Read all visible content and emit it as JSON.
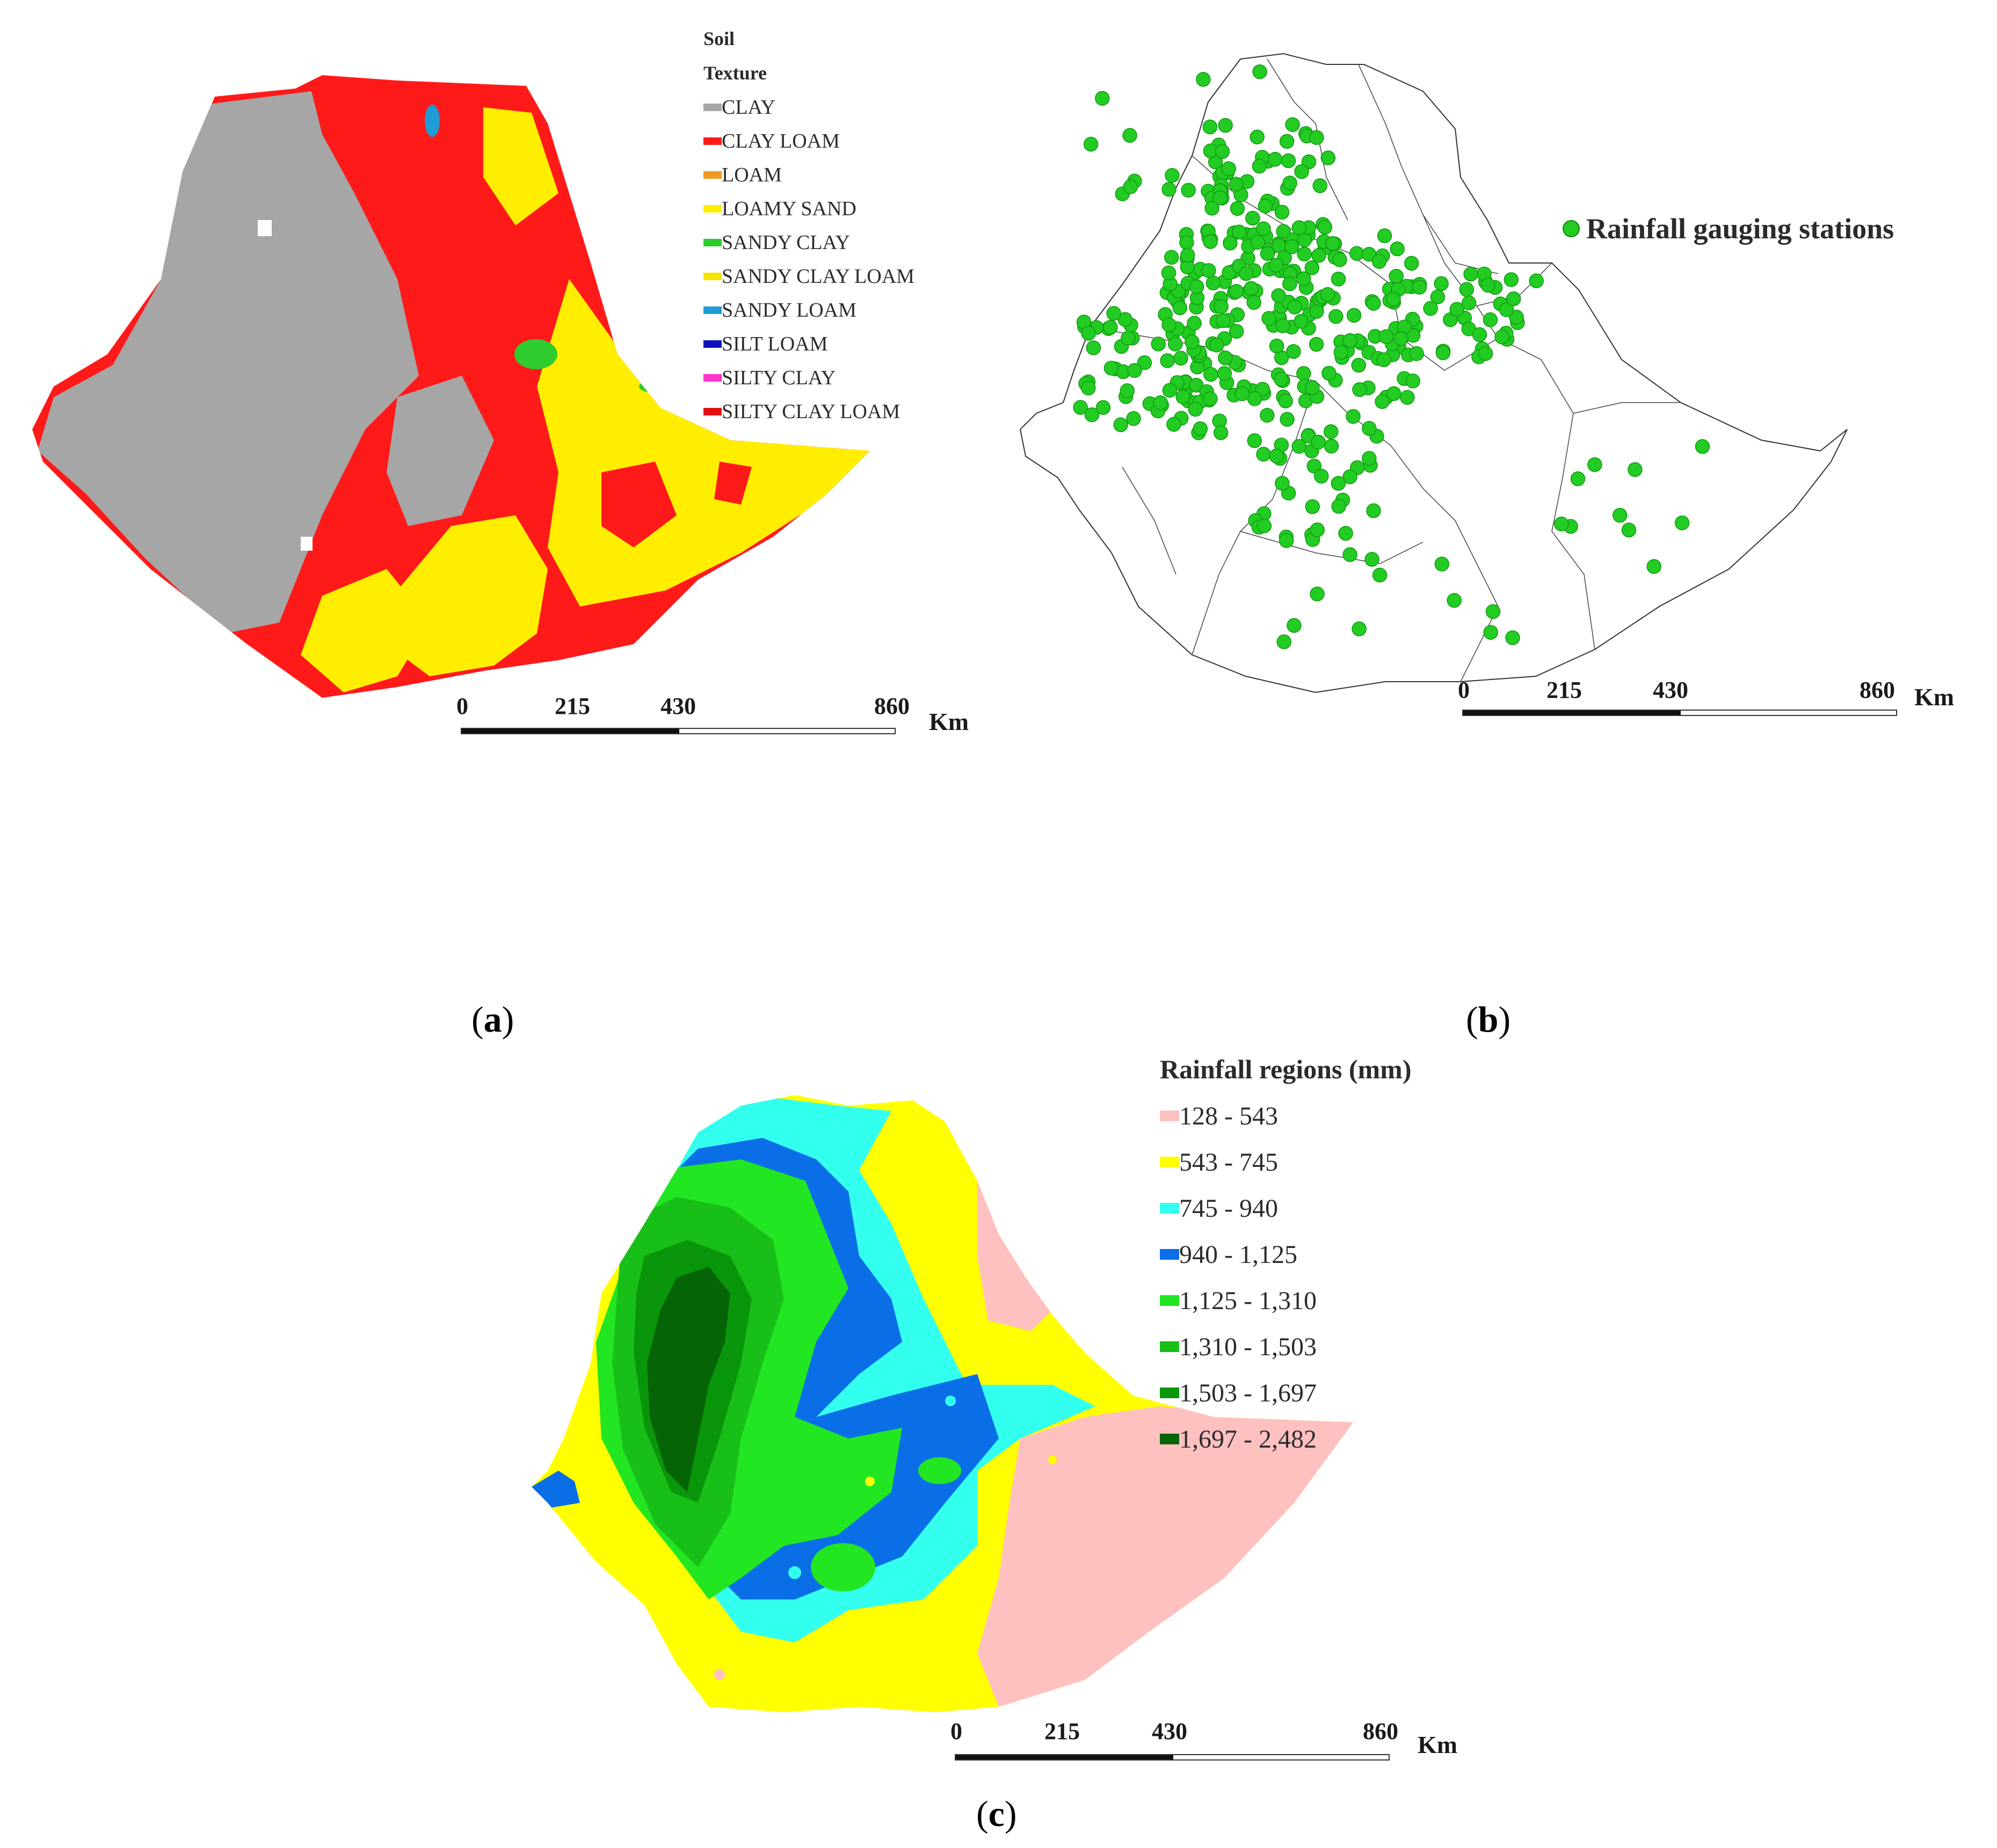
{
  "panels": {
    "a": {
      "caption_letter": "a",
      "legend": {
        "title_line1": "Soil",
        "title_line2": "Texture",
        "items": [
          {
            "label": "CLAY",
            "color": "#a6a6a6"
          },
          {
            "label": "CLAY LOAM",
            "color": "#ff1a1a"
          },
          {
            "label": "LOAM",
            "color": "#f29a1f"
          },
          {
            "label": "LOAMY SAND",
            "color": "#ffee00"
          },
          {
            "label": "SANDY CLAY",
            "color": "#2ecc2e"
          },
          {
            "label": "SANDY CLAY LOAM",
            "color": "#f5e400"
          },
          {
            "label": "SANDY LOAM",
            "color": "#1f9bd6"
          },
          {
            "label": "SILT LOAM",
            "color": "#1010c0"
          },
          {
            "label": "SILTY CLAY",
            "color": "#ff33cc"
          },
          {
            "label": "SILTY CLAY LOAM",
            "color": "#e01010"
          }
        ]
      },
      "scale": {
        "ticks": [
          "0",
          "215",
          "430",
          "860"
        ],
        "unit": "Km"
      }
    },
    "b": {
      "caption_letter": "b",
      "legend_label": "Rainfall gauging stations",
      "station_color": "#22cc22",
      "scale": {
        "ticks": [
          "0",
          "215",
          "430",
          "860"
        ],
        "unit": "Km"
      }
    },
    "c": {
      "caption_letter": "c",
      "legend": {
        "title": "Rainfall regions (mm)",
        "items": [
          {
            "label": "128 - 543",
            "color": "#ffc0c0"
          },
          {
            "label": "543 - 745",
            "color": "#ffff00"
          },
          {
            "label": "745 - 940",
            "color": "#33ffee"
          },
          {
            "label": "940 - 1,125",
            "color": "#0a6ee6"
          },
          {
            "label": "1,125 - 1,310",
            "color": "#22e622"
          },
          {
            "label": "1,310 - 1,503",
            "color": "#19bf19"
          },
          {
            "label": "1,503 - 1,697",
            "color": "#0a960a"
          },
          {
            "label": "1,697 - 2,482",
            "color": "#056405"
          }
        ]
      },
      "scale": {
        "ticks": [
          "0",
          "215",
          "430",
          "860"
        ],
        "unit": "Km"
      }
    }
  }
}
